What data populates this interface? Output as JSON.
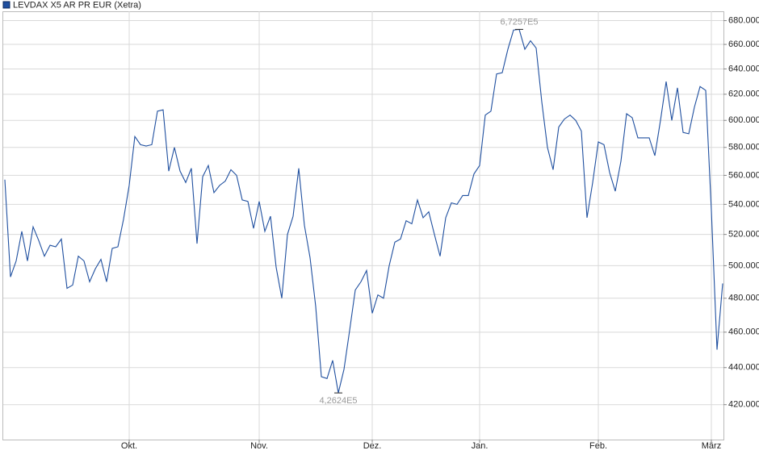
{
  "chart_data": {
    "type": "line",
    "log_scale": true,
    "grid": true,
    "legend": "top-left",
    "categories": [
      null,
      null,
      null,
      null,
      null,
      null,
      null,
      null,
      null,
      null,
      null,
      null,
      null,
      null,
      null,
      null,
      null,
      null,
      null,
      null,
      null,
      null,
      "Okt.",
      null,
      null,
      null,
      null,
      null,
      null,
      null,
      null,
      null,
      null,
      null,
      null,
      null,
      null,
      null,
      null,
      null,
      null,
      null,
      null,
      null,
      null,
      "Nov.",
      null,
      null,
      null,
      null,
      null,
      null,
      null,
      null,
      null,
      null,
      null,
      null,
      null,
      null,
      null,
      null,
      null,
      null,
      null,
      "Dez.",
      null,
      null,
      null,
      null,
      null,
      null,
      null,
      null,
      null,
      null,
      null,
      null,
      null,
      null,
      null,
      null,
      null,
      null,
      "Jan.",
      null,
      null,
      null,
      null,
      null,
      null,
      null,
      null,
      null,
      null,
      null,
      null,
      null,
      null,
      null,
      null,
      null,
      null,
      null,
      null,
      "Feb.",
      null,
      null,
      null,
      null,
      null,
      null,
      null,
      null,
      null,
      null,
      null,
      null,
      null,
      null,
      null,
      null,
      null,
      null,
      null,
      "März",
      null,
      null
    ],
    "series": [
      {
        "name": "LEVDAX X5 AR PR EUR (Xetra)",
        "color": "#1f4f9f",
        "values": [
          557000,
          493000,
          503000,
          522000,
          503000,
          525000,
          516000,
          506000,
          513000,
          512000,
          517000,
          486000,
          488000,
          506000,
          503000,
          490000,
          498000,
          504000,
          490000,
          511000,
          512000,
          530000,
          553000,
          588000,
          582000,
          581000,
          582000,
          607000,
          608000,
          563000,
          580000,
          563000,
          555000,
          565000,
          514000,
          559000,
          567000,
          548000,
          553000,
          556000,
          564000,
          560000,
          543000,
          542000,
          524000,
          542000,
          522000,
          532000,
          499000,
          480000,
          520000,
          532000,
          565000,
          526000,
          505000,
          475000,
          435000,
          434000,
          444000,
          426240,
          439000,
          461000,
          485000,
          490000,
          497000,
          471000,
          482000,
          480000,
          500000,
          515000,
          517000,
          529000,
          527000,
          543000,
          531000,
          535000,
          520000,
          506000,
          531000,
          541000,
          540000,
          546000,
          546000,
          561000,
          567000,
          604000,
          607000,
          636000,
          637000,
          656000,
          672000,
          672570,
          656000,
          663000,
          657000,
          614000,
          580000,
          564000,
          595000,
          601000,
          604000,
          600000,
          592000,
          531000,
          555000,
          584000,
          582000,
          562000,
          549000,
          570000,
          605000,
          602000,
          587000,
          587000,
          587000,
          574000,
          600000,
          630000,
          600000,
          625000,
          591000,
          590000,
          610000,
          626000,
          623000,
          536000,
          450000,
          489000
        ]
      }
    ],
    "annotations": [
      {
        "text": "6,7257E5",
        "index": 91
      },
      {
        "text": "4,2624E5",
        "index": 59
      }
    ],
    "ylim": [
      402000,
      688000
    ],
    "yticks": [
      {
        "value": 420000,
        "label": "420.000"
      },
      {
        "value": 440000,
        "label": "440.000"
      },
      {
        "value": 460000,
        "label": "460.000"
      },
      {
        "value": 480000,
        "label": "480.000"
      },
      {
        "value": 500000,
        "label": "500.000"
      },
      {
        "value": 520000,
        "label": "520.000"
      },
      {
        "value": 540000,
        "label": "540.000"
      },
      {
        "value": 560000,
        "label": "560.000"
      },
      {
        "value": 580000,
        "label": "580.000"
      },
      {
        "value": 600000,
        "label": "600.000"
      },
      {
        "value": 620000,
        "label": "620.000"
      },
      {
        "value": 640000,
        "label": "640.000"
      },
      {
        "value": 660000,
        "label": "660.000"
      },
      {
        "value": 680000,
        "label": "680.000"
      }
    ]
  }
}
